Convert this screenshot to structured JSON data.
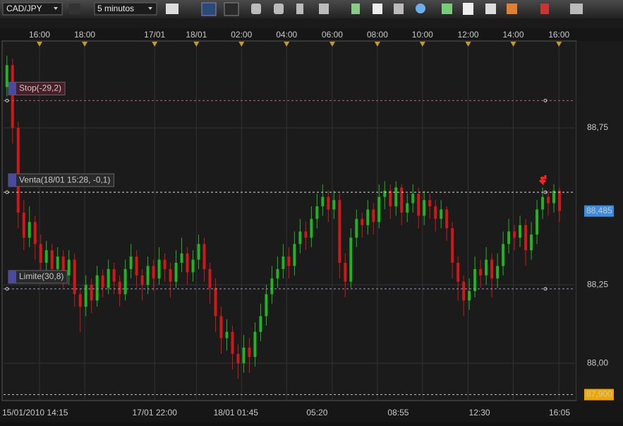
{
  "toolbar": {
    "symbol": "CAD/JPY",
    "timeframe": "5 minutos"
  },
  "chart_data": {
    "type": "candlestick",
    "up_color": "#22b322",
    "down_color": "#d01818",
    "xlim": [
      -0.6,
      100.75
    ],
    "ylim": [
      87.881,
      89.027
    ],
    "top_xticks": [
      {
        "value": 5.78,
        "label": "16:00"
      },
      {
        "value": 13.8,
        "label": "18:00"
      },
      {
        "value": 26.2,
        "label": "17/01"
      },
      {
        "value": 33.6,
        "label": "18/01"
      },
      {
        "value": 41.6,
        "label": "02:00"
      },
      {
        "value": 49.6,
        "label": "04:00"
      },
      {
        "value": 57.7,
        "label": "06:00"
      },
      {
        "value": 65.7,
        "label": "08:00"
      },
      {
        "value": 73.7,
        "label": "10:00"
      },
      {
        "value": 81.8,
        "label": "12:00"
      },
      {
        "value": 89.8,
        "label": "14:00"
      },
      {
        "value": 97.9,
        "label": "16:00"
      }
    ],
    "bottom_xticks": [
      {
        "value": 0,
        "label": "15/01/2010 14:15"
      },
      {
        "value": 26.2,
        "label": "17/01 22:00"
      },
      {
        "value": 40.6,
        "label": "18/01 01:45"
      },
      {
        "value": 55,
        "label": "05:20"
      },
      {
        "value": 69.4,
        "label": "08:55"
      },
      {
        "value": 83.8,
        "label": "12:30"
      },
      {
        "value": 98,
        "label": "16:05"
      }
    ],
    "yticks": [
      {
        "value": 88,
        "label": "88,00"
      },
      {
        "value": 88.25,
        "label": "88,25"
      },
      {
        "value": 88.75,
        "label": "88,75"
      }
    ],
    "grid": true,
    "orders": [
      {
        "label": "Stop(-29,2)",
        "value": 88.837,
        "color": "#c06070"
      },
      {
        "label": "Venta(18/01 15:28, -0,1)",
        "value": 88.545,
        "color": "#d8d8d8"
      },
      {
        "label": "Limite(30,8)",
        "value": 88.237,
        "color": "#9a9ad0"
      }
    ],
    "price_labels": [
      {
        "value": 88.485,
        "label": "88,485",
        "color": "#3a8de0"
      },
      {
        "value": 87.9,
        "label": "87,900",
        "color": "#f0a800"
      }
    ],
    "open": [
      88.88,
      88.95,
      88.75,
      88.48,
      88.4,
      88.45,
      88.38,
      88.32,
      88.36,
      88.3,
      88.34,
      88.28,
      88.33,
      88.22,
      88.18,
      88.25,
      88.2,
      88.28,
      88.24,
      88.3,
      88.26,
      88.22,
      88.3,
      88.34,
      88.28,
      88.25,
      88.31,
      88.27,
      88.33,
      88.3,
      88.26,
      88.32,
      88.35,
      88.29,
      88.33,
      88.38,
      88.3,
      88.24,
      88.15,
      88.08,
      88.1,
      88.03,
      88.0,
      88.05,
      88.02,
      88.1,
      88.15,
      88.22,
      88.27,
      88.3,
      88.34,
      88.31,
      88.38,
      88.42,
      88.4,
      88.46,
      88.5,
      88.53,
      88.49,
      88.52,
      88.32,
      88.26,
      88.4,
      88.46,
      88.44,
      88.49,
      88.45,
      88.53,
      88.55,
      88.5,
      88.56,
      88.48,
      88.51,
      88.54,
      88.47,
      88.52,
      88.5,
      88.46,
      88.49,
      88.43,
      88.32,
      88.26,
      88.2,
      88.23,
      88.3,
      88.28,
      88.33,
      88.27,
      88.31,
      88.38,
      88.42,
      88.4,
      88.44,
      88.36,
      88.41,
      88.49,
      88.53,
      88.51,
      88.55
    ],
    "high": [
      88.98,
      88.97,
      88.77,
      88.52,
      88.5,
      88.47,
      88.41,
      88.39,
      88.38,
      88.37,
      88.36,
      88.36,
      88.35,
      88.24,
      88.28,
      88.27,
      88.31,
      88.3,
      88.33,
      88.32,
      88.28,
      88.33,
      88.38,
      88.36,
      88.3,
      88.34,
      88.33,
      88.37,
      88.35,
      88.32,
      88.36,
      88.4,
      88.37,
      88.36,
      88.41,
      88.4,
      88.32,
      88.27,
      88.18,
      88.14,
      88.12,
      88.06,
      88.09,
      88.08,
      88.13,
      88.19,
      88.25,
      88.31,
      88.34,
      88.38,
      88.37,
      88.42,
      88.46,
      88.45,
      88.5,
      88.54,
      88.57,
      88.55,
      88.55,
      88.54,
      88.35,
      88.43,
      88.49,
      88.48,
      88.52,
      88.51,
      88.57,
      88.58,
      88.57,
      88.58,
      88.57,
      88.54,
      88.57,
      88.56,
      88.55,
      88.54,
      88.52,
      88.52,
      88.5,
      88.45,
      88.34,
      88.28,
      88.27,
      88.34,
      88.33,
      88.37,
      88.35,
      88.35,
      88.42,
      88.46,
      88.44,
      88.47,
      88.46,
      88.45,
      88.52,
      88.56,
      88.55,
      88.57,
      88.56
    ],
    "low": [
      88.85,
      88.7,
      88.43,
      88.36,
      88.37,
      88.33,
      88.28,
      88.29,
      88.26,
      88.27,
      88.24,
      88.25,
      88.18,
      88.1,
      88.15,
      88.16,
      88.18,
      88.21,
      88.22,
      88.22,
      88.18,
      88.2,
      88.27,
      88.24,
      88.2,
      88.22,
      88.23,
      88.25,
      88.26,
      88.21,
      88.24,
      88.29,
      88.25,
      88.26,
      88.3,
      88.26,
      88.19,
      88.1,
      88.03,
      88.04,
      87.98,
      87.95,
      87.97,
      87.97,
      87.99,
      88.07,
      88.12,
      88.19,
      88.24,
      88.27,
      88.27,
      88.28,
      88.35,
      88.36,
      88.37,
      88.43,
      88.47,
      88.45,
      88.46,
      88.27,
      88.21,
      88.24,
      88.37,
      88.4,
      88.41,
      88.41,
      88.43,
      88.49,
      88.46,
      88.47,
      88.44,
      88.45,
      88.48,
      88.43,
      88.44,
      88.46,
      88.42,
      88.43,
      88.39,
      88.27,
      88.2,
      88.15,
      88.17,
      88.21,
      88.24,
      88.25,
      88.21,
      88.24,
      88.28,
      88.35,
      88.36,
      88.37,
      88.31,
      88.33,
      88.38,
      88.46,
      88.47,
      88.48,
      88.45
    ],
    "close": [
      88.95,
      88.75,
      88.48,
      88.4,
      88.45,
      88.38,
      88.32,
      88.36,
      88.3,
      88.34,
      88.28,
      88.33,
      88.22,
      88.18,
      88.25,
      88.2,
      88.28,
      88.24,
      88.3,
      88.26,
      88.22,
      88.3,
      88.34,
      88.28,
      88.25,
      88.31,
      88.27,
      88.33,
      88.3,
      88.26,
      88.32,
      88.35,
      88.29,
      88.33,
      88.38,
      88.3,
      88.24,
      88.15,
      88.08,
      88.1,
      88.03,
      88.0,
      88.05,
      88.02,
      88.1,
      88.15,
      88.22,
      88.27,
      88.3,
      88.34,
      88.31,
      88.38,
      88.42,
      88.4,
      88.46,
      88.5,
      88.53,
      88.49,
      88.52,
      88.32,
      88.26,
      88.4,
      88.46,
      88.44,
      88.49,
      88.45,
      88.53,
      88.55,
      88.5,
      88.56,
      88.48,
      88.51,
      88.54,
      88.47,
      88.52,
      88.5,
      88.46,
      88.49,
      88.43,
      88.32,
      88.26,
      88.2,
      88.23,
      88.3,
      88.28,
      88.33,
      88.27,
      88.31,
      88.38,
      88.42,
      88.4,
      88.44,
      88.36,
      88.41,
      88.49,
      88.53,
      88.51,
      88.55,
      88.485
    ]
  }
}
